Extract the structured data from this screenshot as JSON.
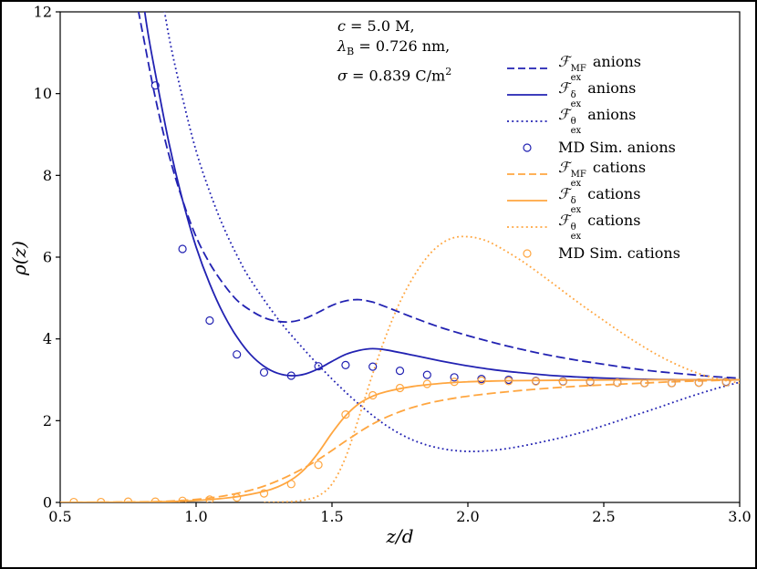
{
  "annotation": {
    "l1_sym": "c",
    "l1_rest": " = 5.0 M,",
    "l2_sym": "λ",
    "l2_sub": "B",
    "l2_rest": " = 0.726 nm,",
    "l3_sym": "σ",
    "l3_rest": " = 0.839 C/m",
    "l3_sup": "2"
  },
  "chart_data": {
    "type": "line",
    "title": "",
    "xlabel": "z/d",
    "ylabel": "ρ(z)",
    "xlim": [
      0.5,
      3.0
    ],
    "ylim": [
      0,
      12
    ],
    "grid": false,
    "xticks": {
      "values": [
        0.5,
        1.0,
        1.5,
        2.0,
        2.5,
        3.0
      ],
      "labels": [
        "0.5",
        "1.0",
        "1.5",
        "2.0",
        "2.5",
        "3.0"
      ]
    },
    "yticks": {
      "values": [
        0,
        2,
        4,
        6,
        8,
        10,
        12
      ],
      "labels": [
        "0",
        "2",
        "4",
        "6",
        "8",
        "10",
        "12"
      ]
    },
    "colors": {
      "anion": "#2222b2",
      "cation": "#ffa640"
    },
    "series": [
      {
        "name": "Fex-MF-anions",
        "style": "dashed",
        "ion": "anion",
        "points": [
          [
            0.76,
            13
          ],
          [
            0.8,
            11.6
          ],
          [
            0.85,
            9.9
          ],
          [
            0.9,
            8.5
          ],
          [
            0.95,
            7.4
          ],
          [
            1.0,
            6.5
          ],
          [
            1.05,
            5.85
          ],
          [
            1.1,
            5.35
          ],
          [
            1.15,
            4.95
          ],
          [
            1.2,
            4.7
          ],
          [
            1.25,
            4.52
          ],
          [
            1.3,
            4.43
          ],
          [
            1.35,
            4.42
          ],
          [
            1.4,
            4.5
          ],
          [
            1.45,
            4.65
          ],
          [
            1.5,
            4.82
          ],
          [
            1.55,
            4.93
          ],
          [
            1.6,
            4.96
          ],
          [
            1.65,
            4.9
          ],
          [
            1.7,
            4.78
          ],
          [
            1.8,
            4.52
          ],
          [
            1.9,
            4.28
          ],
          [
            2.0,
            4.08
          ],
          [
            2.1,
            3.9
          ],
          [
            2.2,
            3.74
          ],
          [
            2.3,
            3.6
          ],
          [
            2.4,
            3.48
          ],
          [
            2.5,
            3.38
          ],
          [
            2.6,
            3.28
          ],
          [
            2.7,
            3.2
          ],
          [
            2.8,
            3.14
          ],
          [
            2.9,
            3.08
          ],
          [
            3.0,
            3.04
          ]
        ]
      },
      {
        "name": "Fex-delta-anions",
        "style": "solid",
        "ion": "anion",
        "points": [
          [
            0.79,
            13
          ],
          [
            0.82,
            11.6
          ],
          [
            0.85,
            10.5
          ],
          [
            0.9,
            8.8
          ],
          [
            0.95,
            7.4
          ],
          [
            1.0,
            6.25
          ],
          [
            1.05,
            5.35
          ],
          [
            1.1,
            4.62
          ],
          [
            1.15,
            4.05
          ],
          [
            1.2,
            3.62
          ],
          [
            1.25,
            3.33
          ],
          [
            1.3,
            3.16
          ],
          [
            1.35,
            3.1
          ],
          [
            1.4,
            3.14
          ],
          [
            1.45,
            3.27
          ],
          [
            1.5,
            3.45
          ],
          [
            1.55,
            3.62
          ],
          [
            1.6,
            3.72
          ],
          [
            1.65,
            3.76
          ],
          [
            1.7,
            3.73
          ],
          [
            1.8,
            3.6
          ],
          [
            1.9,
            3.46
          ],
          [
            2.0,
            3.34
          ],
          [
            2.1,
            3.24
          ],
          [
            2.2,
            3.17
          ],
          [
            2.3,
            3.11
          ],
          [
            2.4,
            3.07
          ],
          [
            2.5,
            3.04
          ],
          [
            2.6,
            3.02
          ],
          [
            2.7,
            3.01
          ],
          [
            2.8,
            3.0
          ],
          [
            2.9,
            3.0
          ],
          [
            3.0,
            3.0
          ]
        ]
      },
      {
        "name": "Fex-theta-anions",
        "style": "dotted",
        "ion": "anion",
        "points": [
          [
            0.86,
            13
          ],
          [
            0.9,
            11.4
          ],
          [
            0.95,
            9.9
          ],
          [
            1.0,
            8.6
          ],
          [
            1.05,
            7.6
          ],
          [
            1.1,
            6.75
          ],
          [
            1.15,
            6.05
          ],
          [
            1.2,
            5.45
          ],
          [
            1.3,
            4.5
          ],
          [
            1.4,
            3.72
          ],
          [
            1.5,
            3.02
          ],
          [
            1.6,
            2.4
          ],
          [
            1.7,
            1.88
          ],
          [
            1.8,
            1.52
          ],
          [
            1.9,
            1.32
          ],
          [
            2.0,
            1.25
          ],
          [
            2.1,
            1.28
          ],
          [
            2.2,
            1.38
          ],
          [
            2.3,
            1.52
          ],
          [
            2.4,
            1.68
          ],
          [
            2.5,
            1.88
          ],
          [
            2.6,
            2.1
          ],
          [
            2.7,
            2.32
          ],
          [
            2.8,
            2.55
          ],
          [
            2.9,
            2.76
          ],
          [
            3.0,
            2.94
          ]
        ]
      },
      {
        "name": "Fex-MF-cations",
        "style": "dashed",
        "ion": "cation",
        "points": [
          [
            0.5,
            0.0
          ],
          [
            0.7,
            0.01
          ],
          [
            0.85,
            0.02
          ],
          [
            0.95,
            0.05
          ],
          [
            1.05,
            0.11
          ],
          [
            1.15,
            0.22
          ],
          [
            1.25,
            0.4
          ],
          [
            1.35,
            0.68
          ],
          [
            1.45,
            1.05
          ],
          [
            1.55,
            1.5
          ],
          [
            1.65,
            1.92
          ],
          [
            1.75,
            2.22
          ],
          [
            1.85,
            2.42
          ],
          [
            1.95,
            2.55
          ],
          [
            2.05,
            2.64
          ],
          [
            2.15,
            2.71
          ],
          [
            2.25,
            2.77
          ],
          [
            2.35,
            2.82
          ],
          [
            2.45,
            2.86
          ],
          [
            2.55,
            2.89
          ],
          [
            2.65,
            2.92
          ],
          [
            2.75,
            2.95
          ],
          [
            2.85,
            2.97
          ],
          [
            3.0,
            3.0
          ]
        ]
      },
      {
        "name": "Fex-delta-cations",
        "style": "solid",
        "ion": "cation",
        "points": [
          [
            0.5,
            0.0
          ],
          [
            0.8,
            0.01
          ],
          [
            0.95,
            0.03
          ],
          [
            1.05,
            0.07
          ],
          [
            1.15,
            0.14
          ],
          [
            1.25,
            0.27
          ],
          [
            1.3,
            0.38
          ],
          [
            1.35,
            0.55
          ],
          [
            1.4,
            0.82
          ],
          [
            1.45,
            1.22
          ],
          [
            1.5,
            1.7
          ],
          [
            1.55,
            2.12
          ],
          [
            1.6,
            2.42
          ],
          [
            1.65,
            2.6
          ],
          [
            1.7,
            2.71
          ],
          [
            1.8,
            2.84
          ],
          [
            1.9,
            2.91
          ],
          [
            2.0,
            2.95
          ],
          [
            2.1,
            2.97
          ],
          [
            2.2,
            2.98
          ],
          [
            2.4,
            2.99
          ],
          [
            2.6,
            3.0
          ],
          [
            2.8,
            3.0
          ],
          [
            3.0,
            3.0
          ]
        ]
      },
      {
        "name": "Fex-theta-cations",
        "style": "dotted",
        "ion": "cation",
        "points": [
          [
            1.25,
            0.0
          ],
          [
            1.35,
            0.02
          ],
          [
            1.4,
            0.06
          ],
          [
            1.45,
            0.16
          ],
          [
            1.5,
            0.45
          ],
          [
            1.55,
            1.1
          ],
          [
            1.6,
            2.1
          ],
          [
            1.65,
            3.15
          ],
          [
            1.7,
            4.1
          ],
          [
            1.75,
            4.9
          ],
          [
            1.8,
            5.52
          ],
          [
            1.85,
            6.0
          ],
          [
            1.9,
            6.32
          ],
          [
            1.95,
            6.48
          ],
          [
            2.0,
            6.5
          ],
          [
            2.05,
            6.44
          ],
          [
            2.1,
            6.3
          ],
          [
            2.2,
            5.9
          ],
          [
            2.3,
            5.42
          ],
          [
            2.4,
            4.92
          ],
          [
            2.5,
            4.45
          ],
          [
            2.6,
            4.0
          ],
          [
            2.7,
            3.6
          ],
          [
            2.8,
            3.28
          ],
          [
            2.9,
            3.05
          ],
          [
            3.0,
            2.92
          ]
        ]
      },
      {
        "name": "MD-Sim-anions",
        "style": "marker",
        "ion": "anion",
        "points": [
          [
            0.85,
            10.2
          ],
          [
            0.95,
            6.2
          ],
          [
            1.05,
            4.45
          ],
          [
            1.15,
            3.62
          ],
          [
            1.25,
            3.18
          ],
          [
            1.35,
            3.1
          ],
          [
            1.45,
            3.33
          ],
          [
            1.55,
            3.36
          ],
          [
            1.65,
            3.32
          ],
          [
            1.75,
            3.22
          ],
          [
            1.85,
            3.12
          ],
          [
            1.95,
            3.06
          ],
          [
            2.05,
            3.02
          ],
          [
            2.15,
            3.0
          ],
          [
            2.25,
            2.97
          ],
          [
            2.35,
            2.96
          ],
          [
            2.45,
            2.95
          ],
          [
            2.55,
            2.93
          ],
          [
            2.65,
            2.92
          ],
          [
            2.75,
            2.92
          ],
          [
            2.85,
            2.93
          ],
          [
            2.95,
            2.95
          ]
        ]
      },
      {
        "name": "MD-Sim-cations",
        "style": "marker",
        "ion": "cation",
        "points": [
          [
            0.55,
            0.01
          ],
          [
            0.65,
            0.01
          ],
          [
            0.75,
            0.02
          ],
          [
            0.85,
            0.02
          ],
          [
            0.95,
            0.04
          ],
          [
            1.05,
            0.07
          ],
          [
            1.15,
            0.12
          ],
          [
            1.25,
            0.22
          ],
          [
            1.35,
            0.45
          ],
          [
            1.45,
            0.92
          ],
          [
            1.55,
            2.15
          ],
          [
            1.65,
            2.62
          ],
          [
            1.75,
            2.8
          ],
          [
            1.85,
            2.9
          ],
          [
            1.95,
            2.95
          ],
          [
            2.05,
            2.98
          ],
          [
            2.15,
            2.97
          ],
          [
            2.25,
            2.96
          ],
          [
            2.35,
            2.95
          ],
          [
            2.45,
            2.94
          ],
          [
            2.55,
            2.93
          ],
          [
            2.65,
            2.92
          ],
          [
            2.75,
            2.92
          ],
          [
            2.85,
            2.93
          ],
          [
            2.95,
            2.94
          ]
        ]
      }
    ],
    "legend": {
      "position": "upper right",
      "frame": false,
      "entries": [
        {
          "name": "fex-mf-anions",
          "sample": "dashed",
          "ion": "anion",
          "sym": "ℱ",
          "sup": "MF",
          "sub": "ex",
          "text": " anions"
        },
        {
          "name": "fex-delta-anions",
          "sample": "solid",
          "ion": "anion",
          "sym": "ℱ",
          "sup": "δ",
          "sub": "ex",
          "text": " anions"
        },
        {
          "name": "fex-theta-anions",
          "sample": "dotted",
          "ion": "anion",
          "sym": "ℱ",
          "sup": "θ",
          "sub": "ex",
          "text": " anions"
        },
        {
          "name": "md-sim-anions",
          "sample": "marker",
          "ion": "anion",
          "sym": "",
          "sup": "",
          "sub": "",
          "text": "MD Sim. anions"
        },
        {
          "name": "fex-mf-cations",
          "sample": "dashed",
          "ion": "cation",
          "sym": "ℱ",
          "sup": "MF",
          "sub": "ex",
          "text": " cations"
        },
        {
          "name": "fex-delta-cations",
          "sample": "solid",
          "ion": "cation",
          "sym": "ℱ",
          "sup": "δ",
          "sub": "ex",
          "text": " cations"
        },
        {
          "name": "fex-theta-cations",
          "sample": "dotted",
          "ion": "cation",
          "sym": "ℱ",
          "sup": "θ",
          "sub": "ex",
          "text": " cations"
        },
        {
          "name": "md-sim-cations",
          "sample": "marker",
          "ion": "cation",
          "sym": "",
          "sup": "",
          "sub": "",
          "text": "MD Sim. cations"
        }
      ]
    }
  }
}
